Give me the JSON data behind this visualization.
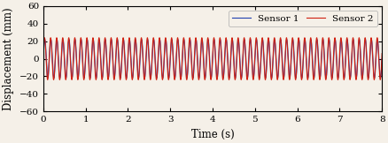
{
  "title": "",
  "xlabel": "Time (s)",
  "ylabel": "Displacement (mm)",
  "xlim": [
    0,
    8
  ],
  "ylim": [
    -60,
    60
  ],
  "xticks": [
    0,
    1,
    2,
    3,
    4,
    5,
    6,
    7,
    8
  ],
  "yticks": [
    -60,
    -40,
    -20,
    0,
    20,
    40,
    60
  ],
  "sensor1_color": "#2040b0",
  "sensor2_color": "#d02010",
  "sensor1_label": "Sensor 1",
  "sensor2_label": "Sensor 2",
  "amplitude1": 22,
  "amplitude2": 24,
  "frequency": 7.0,
  "phase_shift": 0.25,
  "duration": 8.0,
  "num_points": 8000,
  "linewidth": 0.8,
  "legend_fontsize": 7.5,
  "tick_fontsize": 7.5,
  "label_fontsize": 8.5,
  "bg_color": "#f5f0e8"
}
